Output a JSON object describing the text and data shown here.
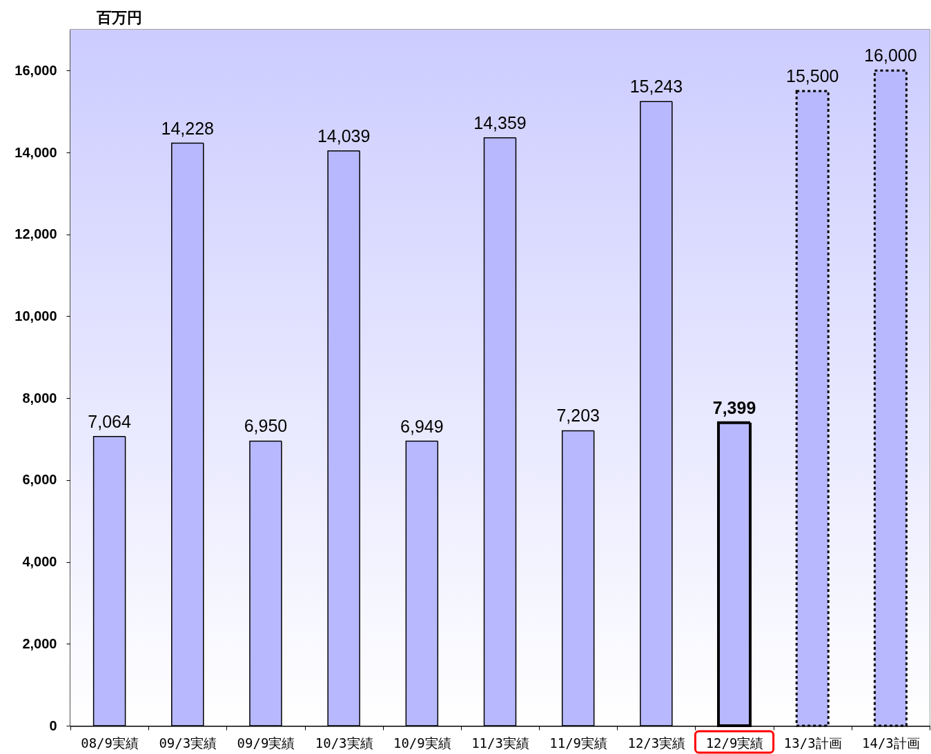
{
  "chart_data": {
    "type": "bar",
    "ylabel": "百万円",
    "categories": [
      "08/9実績",
      "09/3実績",
      "09/9実績",
      "10/3実績",
      "10/9実績",
      "11/3実績",
      "11/9実績",
      "12/3実績",
      "12/9実績",
      "13/3計画",
      "14/3計画"
    ],
    "series": [
      {
        "color": "#b8b8ff",
        "line_style": "solid",
        "values": [
          7064,
          14228,
          6950,
          14039,
          6949,
          14359,
          7203,
          15243,
          null,
          null,
          null
        ],
        "value_labels": [
          "7,064",
          "14,228",
          "6,950",
          "14,039",
          "6,949",
          "14,359",
          "7,203",
          "15,243",
          null,
          null,
          null
        ]
      },
      {
        "color": "#b8b8ff",
        "line_style": "solid",
        "values": [
          null,
          null,
          null,
          null,
          null,
          null,
          null,
          null,
          7399,
          null,
          null
        ],
        "value_labels": [
          null,
          null,
          null,
          null,
          null,
          null,
          null,
          null,
          "7,399",
          null,
          null
        ]
      },
      {
        "color": "#b8b8ff",
        "line_style": "dotted",
        "values": [
          null,
          null,
          null,
          null,
          null,
          null,
          null,
          null,
          null,
          15500,
          16000
        ],
        "value_labels": [
          null,
          null,
          null,
          null,
          null,
          null,
          null,
          null,
          null,
          "15,500",
          "16,000"
        ]
      }
    ],
    "ylim": [
      0,
      17000
    ],
    "yticks": [
      0,
      {
        "value": 2000,
        "label": "2,000"
      },
      {
        "value": 4000,
        "label": "4,000"
      },
      {
        "value": 6000,
        "label": "6,000"
      },
      {
        "value": 8000,
        "label": "8,000"
      },
      {
        "value": 10000,
        "label": "10,000"
      },
      {
        "value": 12000,
        "label": "12,000"
      },
      {
        "value": 14000,
        "label": "14,000"
      },
      {
        "value": 16000,
        "label": "16,000"
      }
    ],
    "grid": false
  }
}
